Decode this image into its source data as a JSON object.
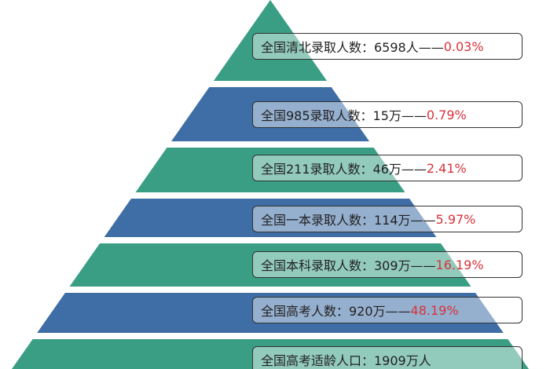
{
  "colors": {
    "teal": "#3a9e84",
    "blue": "#3f6ea6",
    "percent": "#d8323a"
  },
  "levels": [
    {
      "label": "全国清北录取人数：6598人——",
      "percent": "0.03%",
      "color": "teal"
    },
    {
      "label": "全国985录取人数：15万——",
      "percent": "0.79%",
      "color": "blue"
    },
    {
      "label": "全国211录取人数：46万——",
      "percent": "2.41%",
      "color": "teal"
    },
    {
      "label": "全国一本录取人数：114万——",
      "percent": "5.97%",
      "color": "blue"
    },
    {
      "label": "全国本科录取人数：309万——",
      "percent": "16.19%",
      "color": "teal"
    },
    {
      "label": "全国高考人数：920万——",
      "percent": "48.19%",
      "color": "blue"
    },
    {
      "label": "全国高考适龄人口：1909万人",
      "percent": "",
      "color": "teal"
    }
  ]
}
